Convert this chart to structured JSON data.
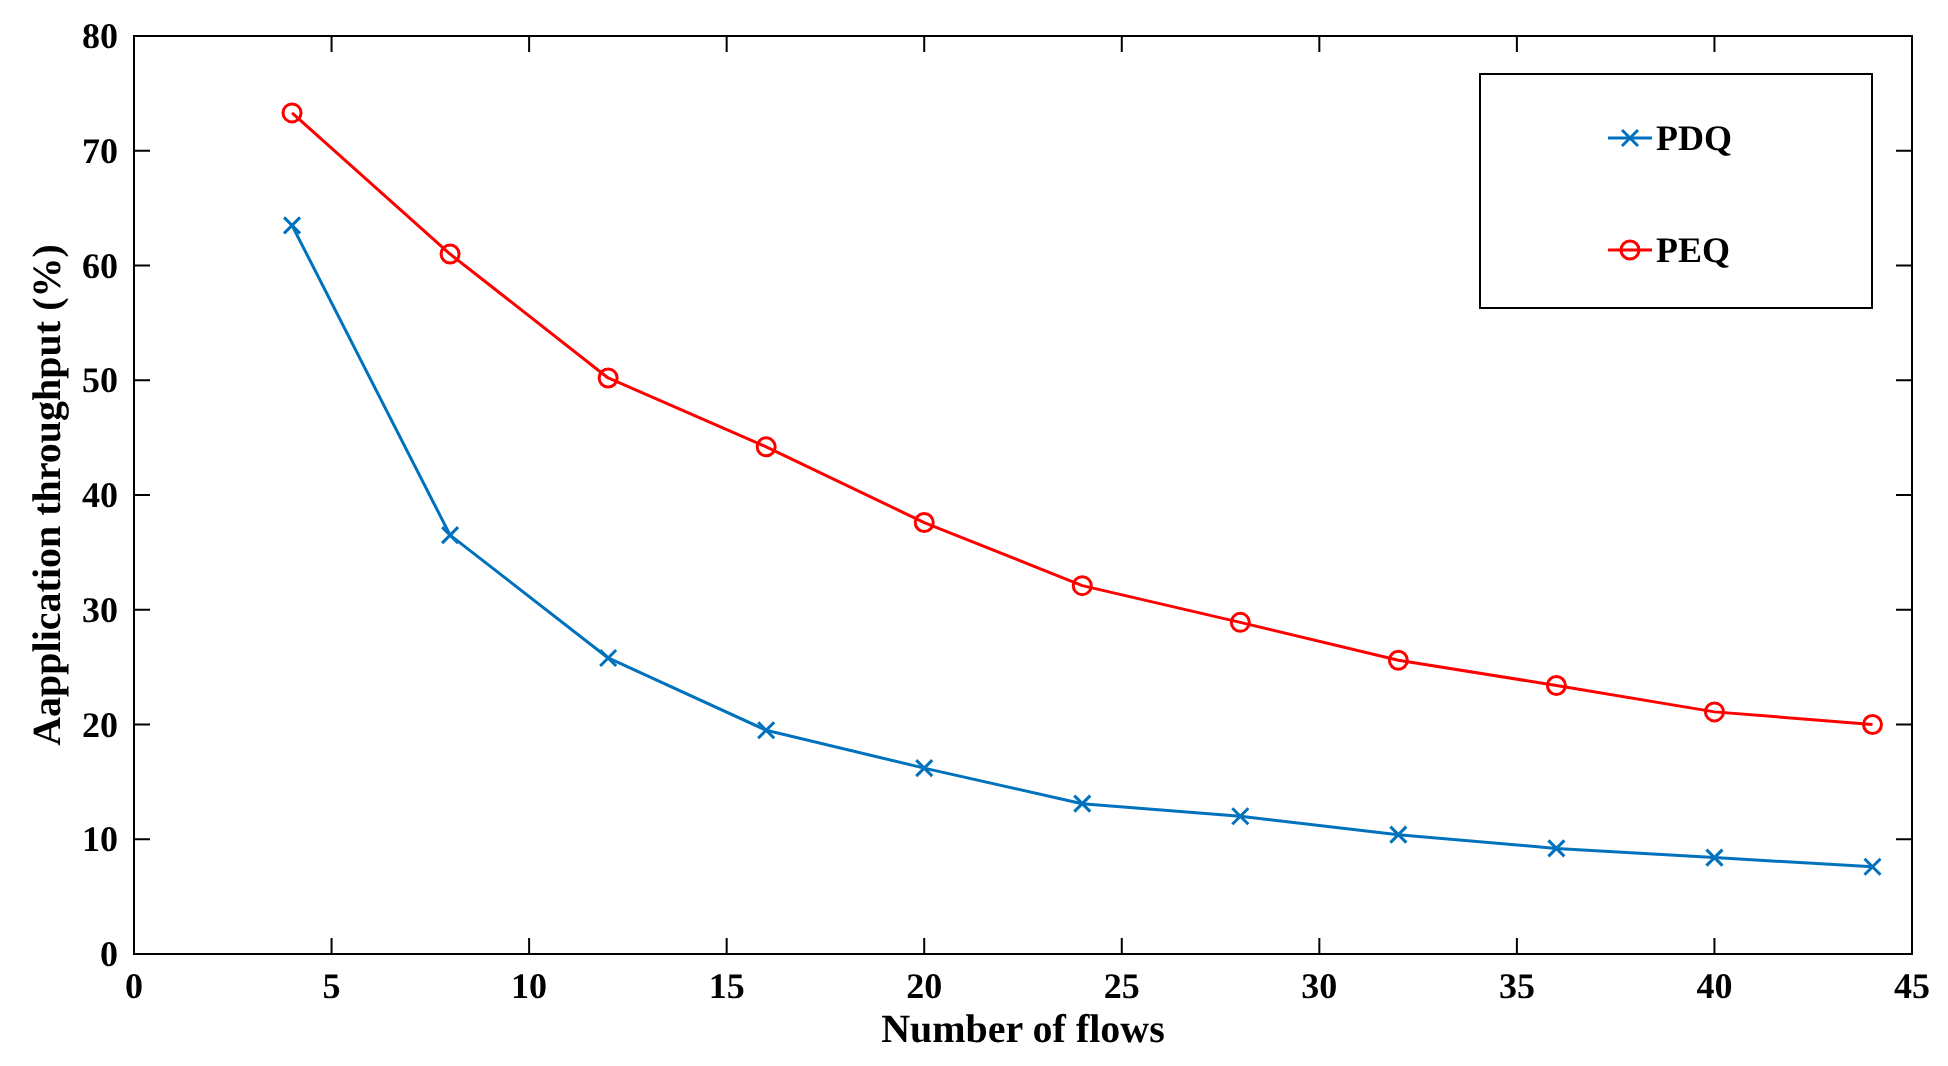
{
  "chart_data": {
    "type": "line",
    "xlabel": "Number of flows",
    "ylabel": "Aapplication throughput (%)",
    "x": [
      4,
      8,
      12,
      16,
      20,
      24,
      28,
      32,
      36,
      40,
      44
    ],
    "series": [
      {
        "name": "PDQ",
        "color": "#0072bd",
        "marker": "cross",
        "values": [
          63.5,
          36.5,
          25.8,
          19.5,
          16.2,
          13.1,
          12,
          10.4,
          9.2,
          8.4,
          7.6
        ]
      },
      {
        "name": "PEQ",
        "color": "#ff0000",
        "marker": "circle",
        "values": [
          73.3,
          61,
          50.2,
          44.2,
          37.6,
          32.1,
          28.9,
          25.6,
          23.4,
          21.1,
          20
        ]
      }
    ],
    "xlim": [
      0,
      45
    ],
    "xticks": [
      0,
      5,
      10,
      15,
      20,
      25,
      30,
      35,
      40,
      45
    ],
    "ylim": [
      0,
      80
    ],
    "yticks": [
      0,
      10,
      20,
      30,
      40,
      50,
      60,
      70,
      80
    ],
    "grid": false,
    "legend": "top right",
    "line_style": "solid"
  }
}
